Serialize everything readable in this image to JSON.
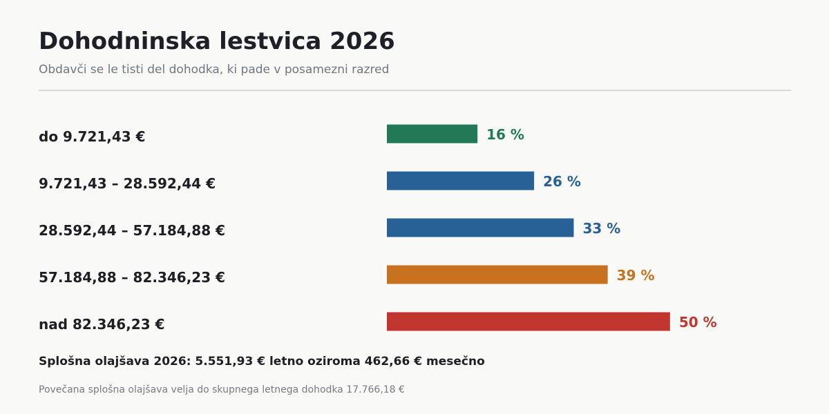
{
  "header": {
    "title": "Dohodninska lestvica 2026",
    "subtitle": "Obdavči se le tisti del dohodka, ki pade v posamezni razred"
  },
  "chart_data": {
    "type": "bar",
    "orientation": "horizontal",
    "categories": [
      "do 9.721,43 €",
      "9.721,43 – 28.592,44 €",
      "28.592,44 – 57.184,88 €",
      "57.184,88 – 82.346,23 €",
      "nad 82.346,23 €"
    ],
    "values": [
      16,
      26,
      33,
      39,
      50
    ],
    "value_labels": [
      "16 %",
      "26 %",
      "33 %",
      "39 %",
      "50 %"
    ],
    "colors": [
      "#217a55",
      "#286196",
      "#286196",
      "#c6721f",
      "#c23630"
    ],
    "xlim": [
      0,
      61
    ],
    "grid": false,
    "legend": "none"
  },
  "footer": {
    "allowance": "Splošna olajšava 2026: 5.551,93 € letno oziroma 462,66 € mesečno",
    "note": "Povečana splošna olajšava velja do skupnega letnega dohodka 17.766,18 €"
  }
}
